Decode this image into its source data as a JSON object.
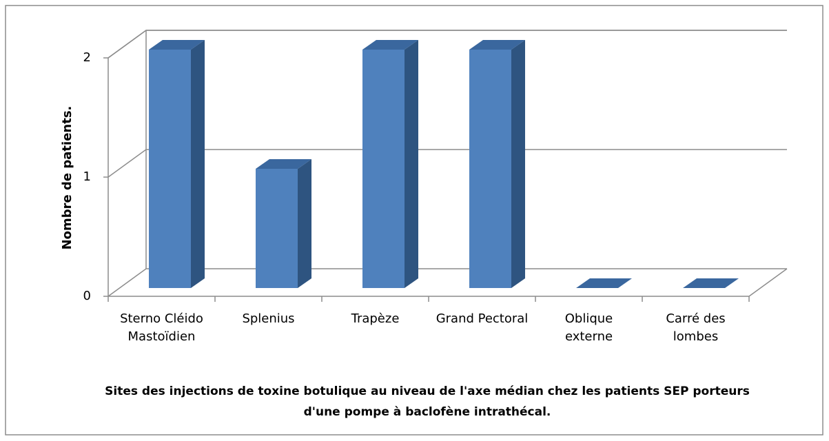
{
  "chart_data": {
    "type": "bar3d",
    "categories": [
      "Sterno Cléido Mastoïdien",
      "Splenius",
      "Trapèze",
      "Grand Pectoral",
      "Oblique externe",
      "Carré des lombes"
    ],
    "values": [
      2,
      1,
      2,
      2,
      0,
      0
    ],
    "color": "#4f81bd",
    "ylim": [
      0,
      2
    ],
    "yticks": [
      0,
      1,
      2
    ],
    "grid": true,
    "ylabel": "Nombre de patients.",
    "xlabel": "Sites des injections de toxine botulique au niveau de l'axe médian chez les patients SEP porteurs d'une pompe à baclofène intrathécal."
  }
}
